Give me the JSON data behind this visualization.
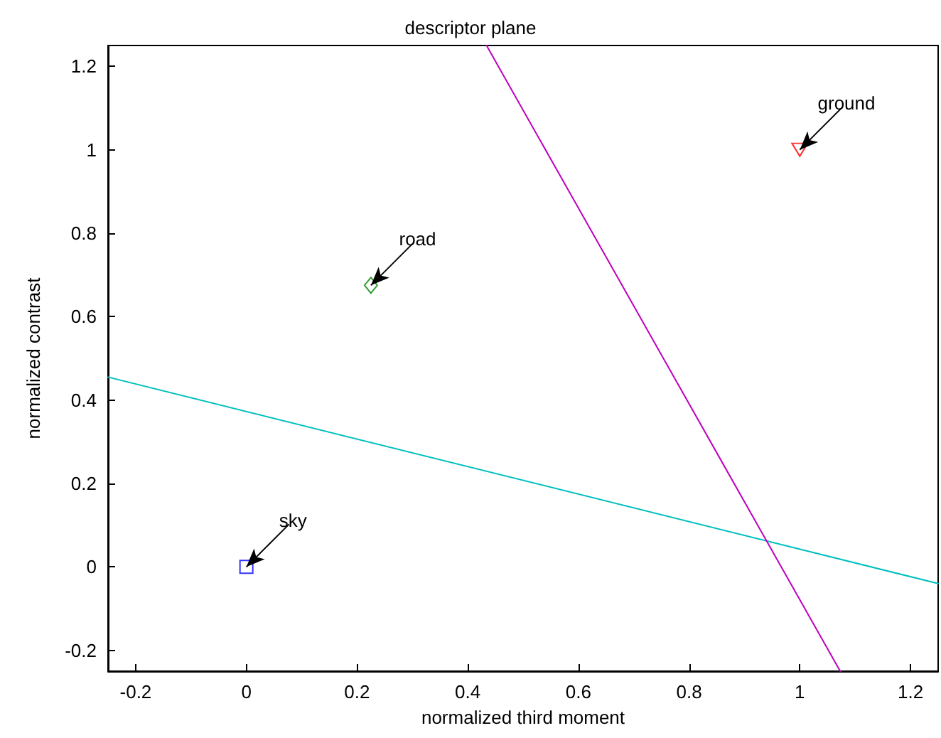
{
  "chart_data": {
    "type": "scatter",
    "title": "descriptor plane",
    "xlabel": "normalized third moment",
    "ylabel": "normalized contrast",
    "xlim": [
      -0.25,
      1.25
    ],
    "ylim": [
      -0.25,
      1.25
    ],
    "xticks": [
      -0.2,
      0,
      0.2,
      0.4,
      0.6,
      0.8,
      1,
      1.2
    ],
    "yticks": [
      -0.2,
      0,
      0.2,
      0.4,
      0.6,
      0.8,
      1,
      1.2
    ],
    "grid": false,
    "series": [
      {
        "type": "scatter",
        "color": "#0000ff",
        "marker": "square",
        "x": [
          0
        ],
        "values": [
          0
        ]
      },
      {
        "type": "scatter",
        "color": "#008000",
        "marker": "diamond",
        "x": [
          0.225
        ],
        "values": [
          0.675
        ]
      },
      {
        "type": "scatter",
        "color": "#ff0000",
        "marker": "triangle",
        "x": [
          1
        ],
        "values": [
          1
        ]
      },
      {
        "type": "line",
        "color": "#00bfbf",
        "x": [
          -0.25,
          1.25
        ],
        "values": [
          0.455,
          -0.04
        ]
      },
      {
        "type": "line",
        "color": "#bf00bf",
        "x": [
          0.434,
          1.073
        ],
        "values": [
          1.25,
          -0.25
        ]
      }
    ],
    "annotations": [
      {
        "text": "sky",
        "x": 0,
        "y": 0
      },
      {
        "text": "road",
        "x": 0.225,
        "y": 0.675
      },
      {
        "text": "ground",
        "x": 1,
        "y": 1
      }
    ]
  }
}
